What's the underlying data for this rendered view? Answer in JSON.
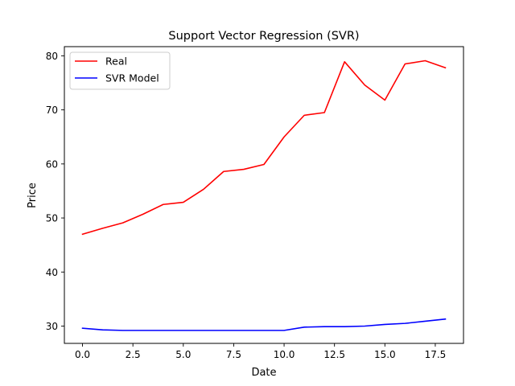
{
  "chart_data": {
    "type": "line",
    "title": "Support Vector Regression (SVR)",
    "xlabel": "Date",
    "ylabel": "Price",
    "xlim": [
      -0.9,
      18.9
    ],
    "ylim": [
      26.8,
      81.7
    ],
    "xticks": [
      0,
      2.5,
      5,
      7.5,
      10,
      12.5,
      15,
      17.5
    ],
    "xtick_labels": [
      "0.0",
      "2.5",
      "5.0",
      "7.5",
      "10.0",
      "12.5",
      "15.0",
      "17.5"
    ],
    "yticks": [
      30,
      40,
      50,
      60,
      70,
      80
    ],
    "ytick_labels": [
      "30",
      "40",
      "50",
      "60",
      "70",
      "80"
    ],
    "grid": false,
    "legend_position": "upper-left",
    "x": [
      0,
      1,
      2,
      3,
      4,
      5,
      6,
      7,
      8,
      9,
      10,
      11,
      12,
      13,
      14,
      15,
      16,
      17,
      18
    ],
    "series": [
      {
        "name": "Real",
        "color": "#ff0000",
        "values": [
          47.0,
          48.1,
          49.1,
          50.7,
          52.5,
          52.9,
          55.3,
          58.6,
          59.0,
          59.9,
          65.0,
          69.0,
          69.5,
          78.9,
          74.6,
          71.8,
          78.5,
          79.1,
          77.8
        ]
      },
      {
        "name": "SVR Model",
        "color": "#0000ff",
        "values": [
          29.6,
          29.3,
          29.2,
          29.2,
          29.2,
          29.2,
          29.2,
          29.2,
          29.2,
          29.2,
          29.2,
          29.8,
          29.9,
          29.9,
          30.0,
          30.3,
          30.5,
          30.9,
          31.3
        ]
      }
    ]
  }
}
